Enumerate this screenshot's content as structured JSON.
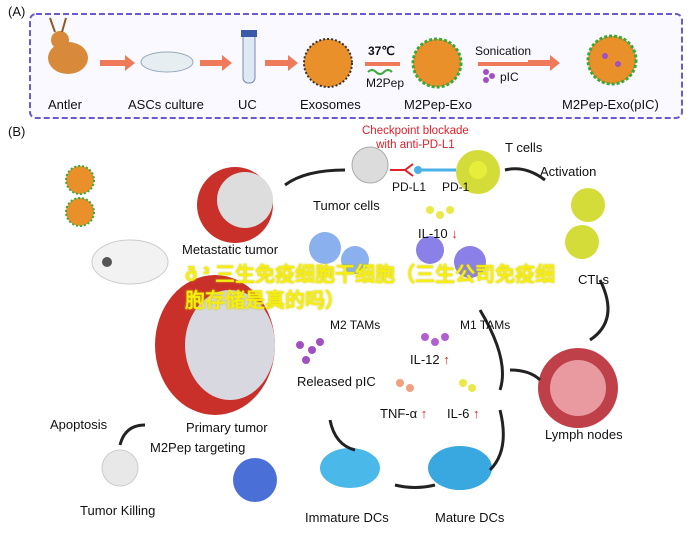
{
  "panel_a": {
    "label": "(A)",
    "steps": [
      "Antler",
      "ASCs culture",
      "UC",
      "Exosomes",
      "M2Pep-Exo",
      "M2Pep-Exo(pIC)"
    ],
    "temperature": "37℃",
    "m2pep": "M2Pep",
    "sonication": "Sonication",
    "pic": "pIC",
    "border_color": "#6a5acd"
  },
  "panel_b": {
    "label": "(B)",
    "checkpoint": [
      "Checkpoint blockade",
      "with anti-PD-L1"
    ],
    "t_cells": "T cells",
    "pd_l1": "PD-L1",
    "pd_1": "PD-1",
    "tumor_cells": "Tumor cells",
    "metastatic_tumor": "Metastatic tumor",
    "activation": "Activation",
    "il10": "IL-10",
    "il10_arrow": "↓",
    "m2_tams": "M2 TAMs",
    "m1_tams": "M1 TAMs",
    "ctls": "CTLs",
    "il12": "IL-12",
    "il12_arrow": "↑",
    "released_pic": "Released pIC",
    "tnf": "TNF-α",
    "tnf_arrow": "↑",
    "il6": "IL-6",
    "il6_arrow": "↑",
    "primary_tumor": "Primary tumor",
    "apoptosis": "Apoptosis",
    "m2pep_targeting": "M2Pep targeting",
    "tumor_killing": "Tumor Killing",
    "immature_dcs": "Immature DCs",
    "mature_dcs": "Mature DCs",
    "lymph_nodes": "Lymph nodes",
    "arrow_color": "#e0202a"
  },
  "overlay": "ð  ³ 三生免疫细胞干细胞（三生公司免疫细胞存储是真的吗）"
}
